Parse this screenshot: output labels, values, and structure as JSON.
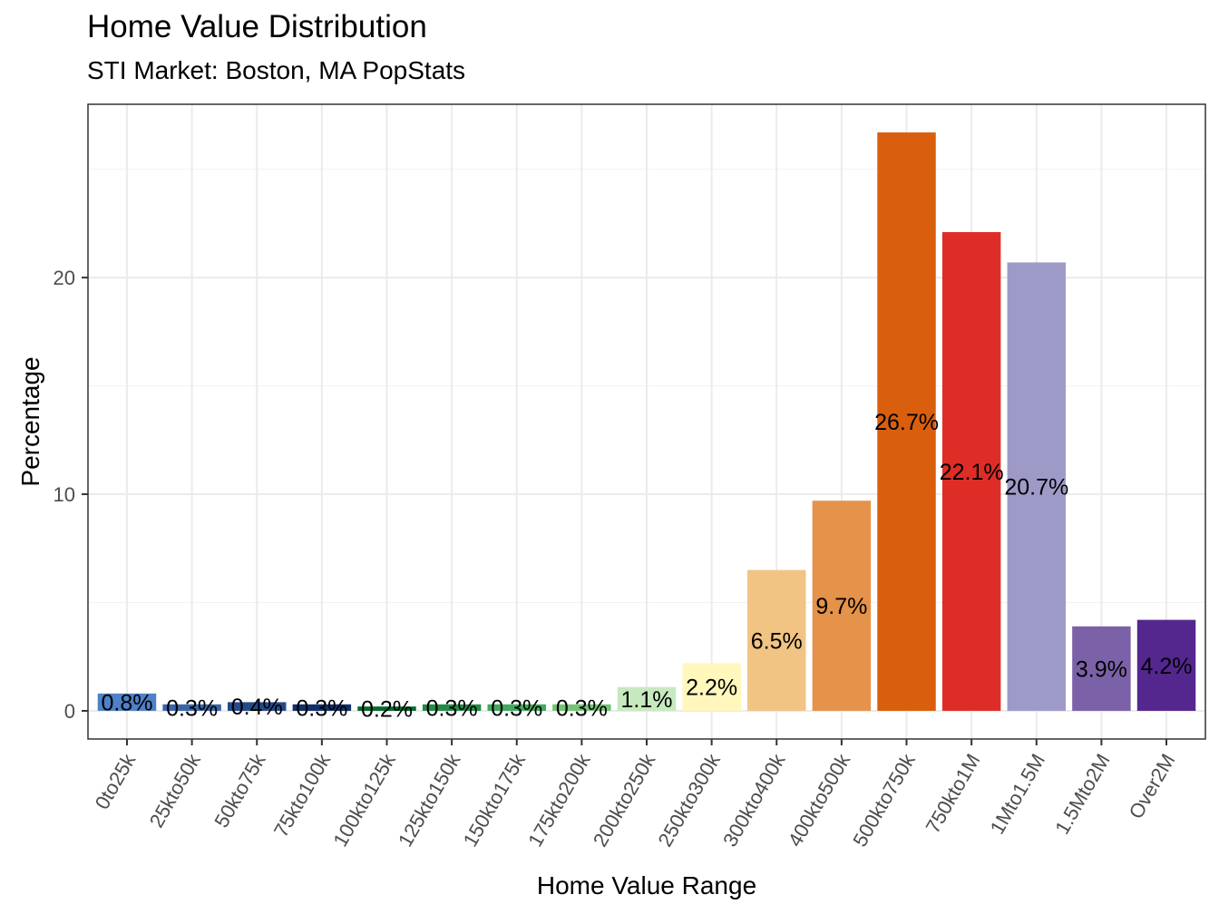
{
  "chart_data": {
    "type": "bar",
    "title": "Home Value Distribution",
    "subtitle": "STI Market: Boston, MA PopStats",
    "xlabel": "Home Value Range",
    "ylabel": "Percentage",
    "ylim": [
      -1.3,
      28
    ],
    "yticks": [
      0,
      10,
      20
    ],
    "ytick_labels": [
      "0",
      "10",
      "20"
    ],
    "grid": true,
    "legend": "none",
    "categories": [
      "0to25k",
      "25kto50k",
      "50kto75k",
      "75kto100k",
      "100kto125k",
      "125kto150k",
      "150kto175k",
      "175kto200k",
      "200kto250k",
      "250kto300k",
      "300kto400k",
      "400kto500k",
      "500kto750k",
      "750kto1M",
      "1Mto1.5M",
      "1.5Mto2M",
      "Over2M"
    ],
    "values": [
      0.8,
      0.3,
      0.4,
      0.3,
      0.2,
      0.3,
      0.3,
      0.3,
      1.1,
      2.2,
      6.5,
      9.7,
      26.7,
      22.1,
      20.7,
      3.9,
      4.2
    ],
    "data_labels": [
      "0.8%",
      "0.3%",
      "0.4%",
      "0.3%",
      "0.2%",
      "0.3%",
      "0.3%",
      "0.3%",
      "1.1%",
      "2.2%",
      "6.5%",
      "9.7%",
      "26.7%",
      "22.1%",
      "20.7%",
      "3.9%",
      "4.2%"
    ],
    "colors": [
      "#4F81C7",
      "#3A66A8",
      "#234B8A",
      "#10306B",
      "#006D2C",
      "#238B45",
      "#41AB5D",
      "#74C476",
      "#C7E9C0",
      "#FFF7BC",
      "#F1C483",
      "#E5924A",
      "#D95F0E",
      "#DE2D26",
      "#9E9AC8",
      "#7B61A8",
      "#54278F"
    ]
  }
}
